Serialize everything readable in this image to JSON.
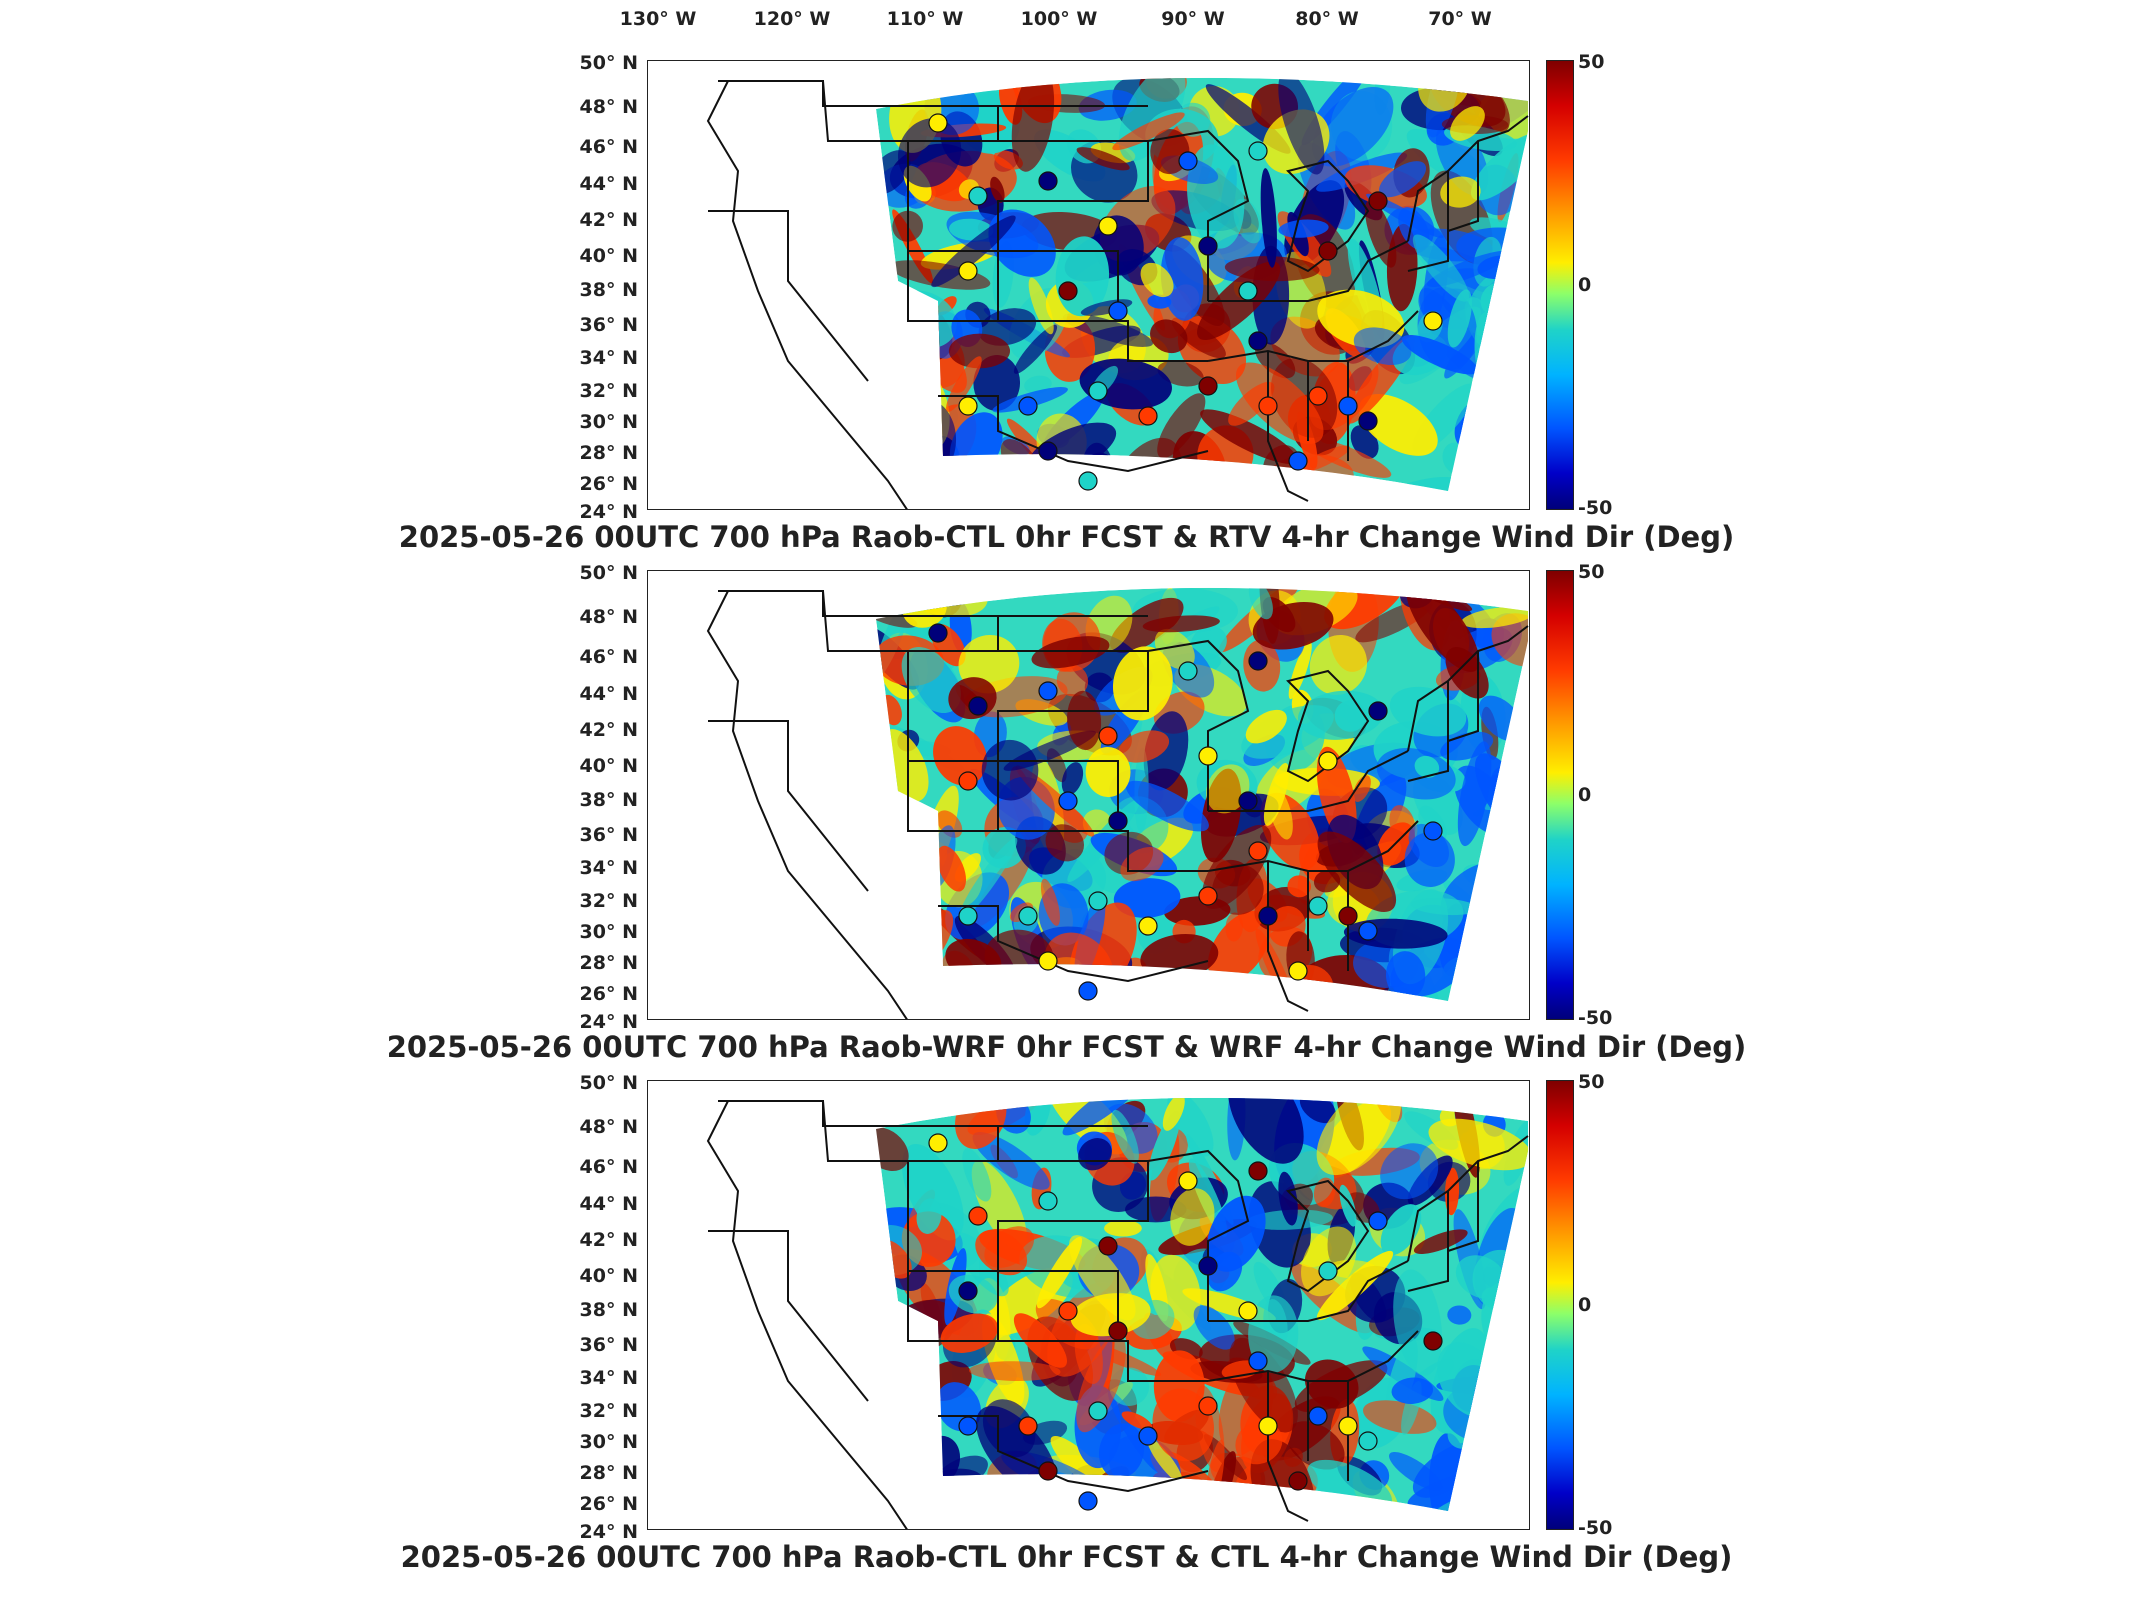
{
  "longitude_labels": [
    "130° W",
    "120° W",
    "110° W",
    "100° W",
    "90° W",
    "80° W",
    "70° W"
  ],
  "latitude_labels": [
    "50° N",
    "48° N",
    "46° N",
    "44° N",
    "42° N",
    "40° N",
    "38° N",
    "36° N",
    "34° N",
    "32° N",
    "30° N",
    "28° N",
    "26° N",
    "24° N"
  ],
  "colorbar": {
    "max_label": "50",
    "mid_label": "0",
    "min_label": "-50",
    "colors": [
      "#7f0000",
      "#ff3a00",
      "#ffee00",
      "#1fd3c8",
      "#0055ff",
      "#00007a"
    ]
  },
  "panels": [
    {
      "caption": "2025-05-26 00UTC 700 hPa Raob-CTL 0hr FCST & RTV 4-hr Change Wind Dir (Deg)"
    },
    {
      "caption": "2025-05-26 00UTC 700 hPa Raob-WRF 0hr FCST & WRF 4-hr Change Wind Dir (Deg)"
    },
    {
      "caption": "2025-05-26 00UTC 700 hPa Raob-CTL 0hr FCST & CTL 4-hr Change Wind Dir (Deg)"
    }
  ]
}
